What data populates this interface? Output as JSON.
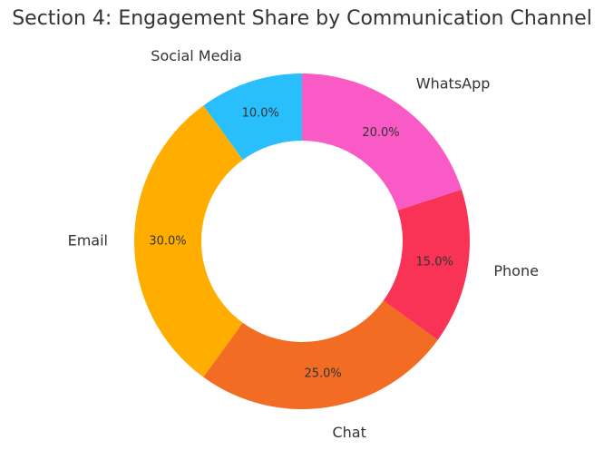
{
  "chart_data": {
    "type": "pie",
    "title": "Section 4: Engagement Share by Communication Channel",
    "categories": [
      "Social Media",
      "Email",
      "Chat",
      "Phone",
      "WhatsApp"
    ],
    "values": [
      10.0,
      30.0,
      25.0,
      15.0,
      20.0
    ],
    "value_labels": [
      "10.0%",
      "30.0%",
      "25.0%",
      "15.0%",
      "20.0%"
    ],
    "colors": [
      "#29BFFD",
      "#FFAE00",
      "#F36C23",
      "#F93355",
      "#FA5AC6"
    ],
    "donut": true,
    "start_angle_deg": 90,
    "direction": "counterclockwise"
  }
}
